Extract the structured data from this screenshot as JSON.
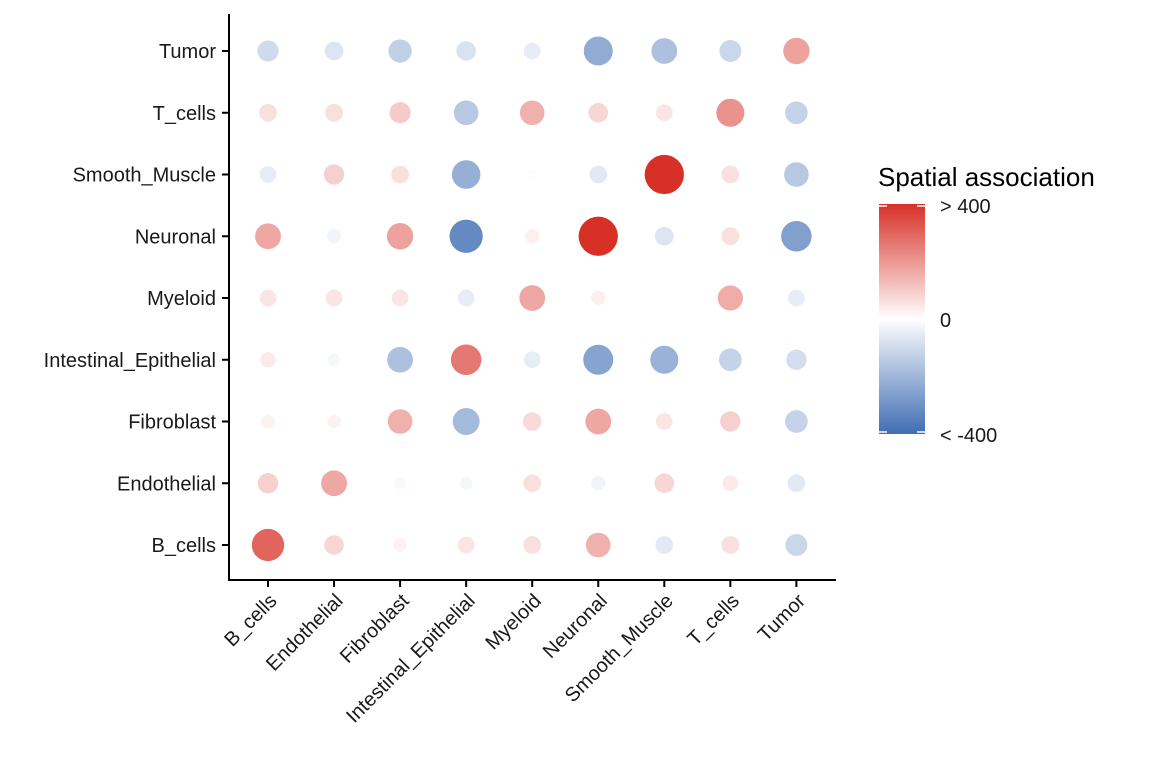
{
  "chart_data": {
    "type": "scatter",
    "subtype": "bubble-matrix",
    "title": "",
    "xlabel": "",
    "ylabel": "",
    "x_categories": [
      "B_cells",
      "Endothelial",
      "Fibroblast",
      "Intestinal_Epithelial",
      "Myeloid",
      "Neuronal",
      "Smooth_Muscle",
      "T_cells",
      "Tumor"
    ],
    "y_categories": [
      "B_cells",
      "Endothelial",
      "Fibroblast",
      "Intestinal_Epithelial",
      "Myeloid",
      "Neuronal",
      "Smooth_Muscle",
      "T_cells",
      "Tumor"
    ],
    "value_unit": "spatial association",
    "note_values": "rows follow y_categories (bottom to top), columns follow x_categories; values estimated from circle color and size",
    "values": [
      [
        300,
        80,
        25,
        50,
        60,
        150,
        -60,
        60,
        -110
      ],
      [
        90,
        170,
        15,
        -20,
        60,
        -30,
        80,
        40,
        -60
      ],
      [
        25,
        25,
        150,
        -190,
        70,
        170,
        50,
        90,
        -120
      ],
      [
        40,
        -20,
        -170,
        260,
        -50,
        -250,
        -210,
        -120,
        -90
      ],
      [
        50,
        50,
        50,
        -50,
        170,
        30,
        0,
        160,
        -50
      ],
      [
        170,
        -30,
        180,
        -320,
        30,
        480,
        -70,
        60,
        -260
      ],
      [
        -50,
        90,
        60,
        -220,
        5,
        -60,
        480,
        60,
        -150
      ],
      [
        60,
        60,
        100,
        -150,
        150,
        80,
        50,
        210,
        -120
      ],
      [
        -100,
        -70,
        -130,
        -80,
        -50,
        -230,
        -170,
        -110,
        180
      ]
    ],
    "color_scale": {
      "title": "Spatial association",
      "labels": [
        "> 400",
        "0",
        "< -400"
      ],
      "domain": [
        -400,
        400
      ],
      "low_color": "#3f6db3",
      "mid_color": "#ffffff",
      "high_color": "#d73027"
    },
    "grid": false,
    "legend_position": "right"
  }
}
